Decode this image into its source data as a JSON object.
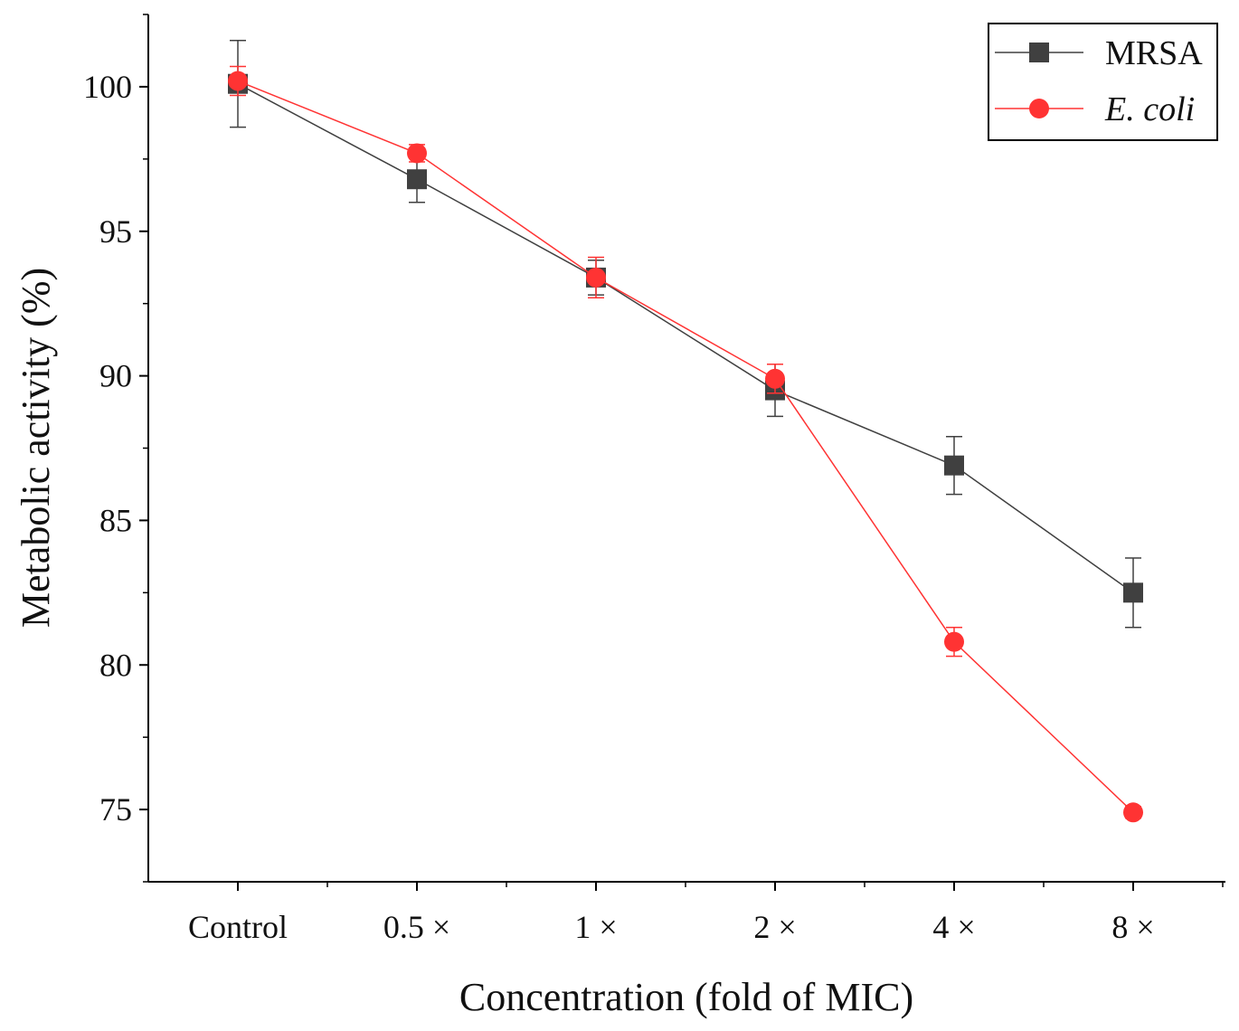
{
  "chart_data": {
    "type": "line",
    "title": "",
    "xlabel": "Concentration (fold of MIC)",
    "ylabel": "Metabolic activity (%)",
    "categories": [
      "Control",
      "0.5 ×",
      "1 ×",
      "2 ×",
      "4 ×",
      "8 ×"
    ],
    "ylim": [
      72.5,
      102.5
    ],
    "yticks": [
      75,
      80,
      85,
      90,
      95,
      100
    ],
    "grid": false,
    "legend_position": "top-right",
    "series": [
      {
        "name": "MRSA",
        "italic": false,
        "color": "#404040",
        "marker": "square",
        "values": [
          100.1,
          96.8,
          93.4,
          89.5,
          86.9,
          82.5
        ],
        "errors": [
          1.5,
          0.8,
          0.6,
          0.9,
          1.0,
          1.2
        ]
      },
      {
        "name": "E. coli",
        "italic": true,
        "color": "#ff3333",
        "marker": "circle",
        "values": [
          100.2,
          97.7,
          93.4,
          89.9,
          80.8,
          74.9
        ],
        "errors": [
          0.5,
          0.3,
          0.7,
          0.5,
          0.5,
          0.2
        ]
      }
    ]
  }
}
